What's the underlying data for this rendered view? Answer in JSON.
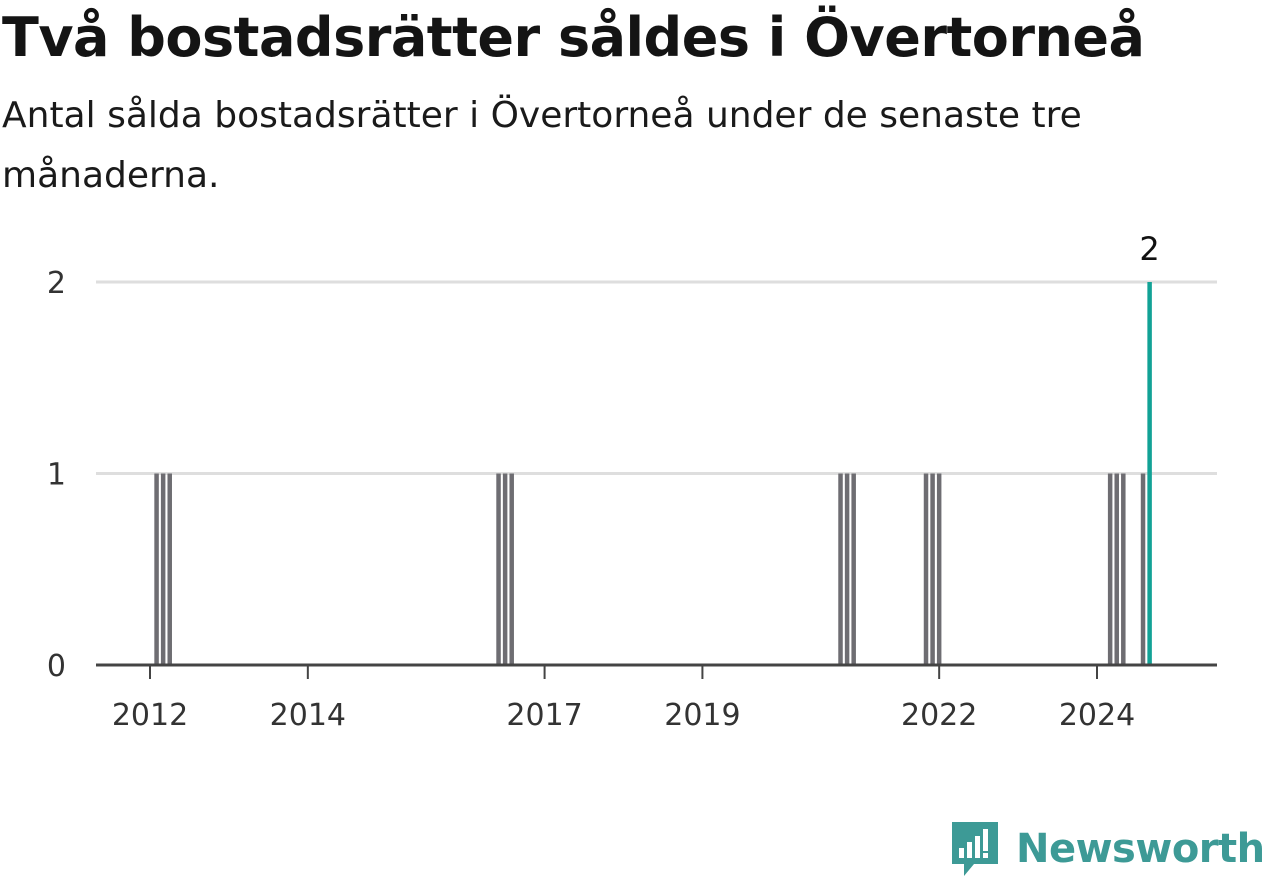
{
  "header": {
    "title": "Två bostadsrätter såldes i Övertorneå",
    "subtitle": "Antal sålda bostadsrätter i Övertorneå under de senaste tre månaderna."
  },
  "brand": {
    "name": "Newsworthy",
    "color": "#3d9a96",
    "icon": "newsworthy-logo-icon"
  },
  "colors": {
    "bar": "#6e6d72",
    "highlight": "#12a296",
    "grid": "#dedede",
    "axis": "#444444"
  },
  "chart_data": {
    "type": "bar",
    "x_type": "date",
    "x_ticks": [
      "2012",
      "2014",
      "2017",
      "2019",
      "2022",
      "2024"
    ],
    "y_ticks": [
      0,
      1,
      2
    ],
    "ylim": [
      0,
      2
    ],
    "grid": true,
    "bars": [
      {
        "x": "2012-02",
        "value": 1
      },
      {
        "x": "2012-03",
        "value": 1
      },
      {
        "x": "2012-04",
        "value": 1
      },
      {
        "x": "2016-06",
        "value": 1
      },
      {
        "x": "2016-07",
        "value": 1
      },
      {
        "x": "2016-08",
        "value": 1
      },
      {
        "x": "2020-10",
        "value": 1
      },
      {
        "x": "2020-11",
        "value": 1
      },
      {
        "x": "2020-12",
        "value": 1
      },
      {
        "x": "2021-11",
        "value": 1
      },
      {
        "x": "2021-12",
        "value": 1
      },
      {
        "x": "2022-01",
        "value": 1
      },
      {
        "x": "2024-03",
        "value": 1
      },
      {
        "x": "2024-04",
        "value": 1
      },
      {
        "x": "2024-05",
        "value": 1
      },
      {
        "x": "2024-08",
        "value": 1
      },
      {
        "x": "2024-09",
        "value": 2,
        "highlight": true,
        "label": "2"
      }
    ]
  }
}
